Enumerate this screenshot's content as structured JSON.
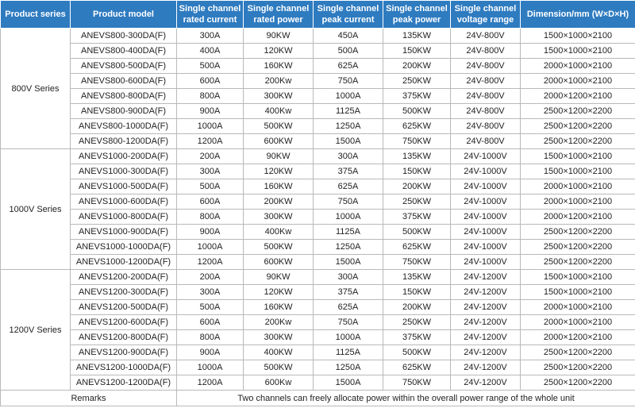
{
  "header": {
    "columns": [
      "Product series",
      "Product model",
      "Single channel\nrated current",
      "Single channel\nrated power",
      "Single channel\npeak current",
      "Single channel\npeak power",
      "Single channel\nvoltage range",
      "Dimension/mm (W×D×H)"
    ]
  },
  "colors": {
    "header_background": "#2e7bc0",
    "header_text": "#ffffff",
    "grid": "#b9b9b9"
  },
  "groups": [
    {
      "series": "800V  Series",
      "rows": [
        [
          "ANEVS800-300DA(F)",
          "300A",
          "90KW",
          "450A",
          "135KW",
          "24V-800V",
          "1500×1000×2100"
        ],
        [
          "ANEVS800-400DA(F)",
          "400A",
          "120KW",
          "500A",
          "150KW",
          "24V-800V",
          "1500×1000×2100"
        ],
        [
          "ANEVS800-500DA(F)",
          "500A",
          "160KW",
          "625A",
          "200KW",
          "24V-800V",
          "2000×1000×2100"
        ],
        [
          "ANEVS800-600DA(F)",
          "600A",
          "200Kw",
          "750A",
          "250KW",
          "24V-800V",
          "2000×1000×2100"
        ],
        [
          "ANEVS800-800DA(F)",
          "800A",
          "300KW",
          "1000A",
          "375KW",
          "24V-800V",
          "2000×1200×2100"
        ],
        [
          "ANEVS800-900DA(F)",
          "900A",
          "400Kw",
          "1125A",
          "500KW",
          "24V-800V",
          "2500×1200×2200"
        ],
        [
          "ANEVS800-1000DA(F)",
          "1000A",
          "500KW",
          "1250A",
          "625KW",
          "24V-800V",
          "2500×1200×2200"
        ],
        [
          "ANEVS800-1200DA(F)",
          "1200A",
          "600KW",
          "1500A",
          "750KW",
          "24V-800V",
          "2500×1200×2200"
        ]
      ]
    },
    {
      "series": "1000V Series",
      "rows": [
        [
          "ANEVS1000-200DA(F)",
          "200A",
          "90KW",
          "300A",
          "135KW",
          "24V-1000V",
          "1500×1000×2100"
        ],
        [
          "ANEVS1000-300DA(F)",
          "300A",
          "120KW",
          "375A",
          "150KW",
          "24V-1000V",
          "1500×1000×2100"
        ],
        [
          "ANEVS1000-500DA(F)",
          "500A",
          "160KW",
          "625A",
          "200KW",
          "24V-1000V",
          "2000×1000×2100"
        ],
        [
          "ANEVS1000-600DA(F)",
          "600A",
          "200KW",
          "750A",
          "250KW",
          "24V-1000V",
          "2000×1000×2100"
        ],
        [
          "ANEVS1000-800DA(F)",
          "800A",
          "300KW",
          "1000A",
          "375KW",
          "24V-1000V",
          "2000×1200×2100"
        ],
        [
          "ANEVS1000-900DA(F)",
          "900A",
          "400Kw",
          "1125A",
          "500KW",
          "24V-1000V",
          "2500×1200×2200"
        ],
        [
          "ANEVS1000-1000DA(F)",
          "1000A",
          "500KW",
          "1250A",
          "625KW",
          "24V-1000V",
          "2500×1200×2200"
        ],
        [
          "ANEVS1000-1200DA(F)",
          "1200A",
          "600KW",
          "1500A",
          "750KW",
          "24V-1000V",
          "2500×1200×2200"
        ]
      ]
    },
    {
      "series": "1200V Series",
      "rows": [
        [
          "ANEVS1200-200DA(F)",
          "200A",
          "90KW",
          "300A",
          "135KW",
          "24V-1200V",
          "1500×1000×2100"
        ],
        [
          "ANEVS1200-300DA(F)",
          "300A",
          "120KW",
          "375A",
          "150KW",
          "24V-1200V",
          "1500×1000×2100"
        ],
        [
          "ANEVS1200-500DA(F)",
          "500A",
          "160KW",
          "625A",
          "200KW",
          "24V-1200V",
          "2000×1000×2100"
        ],
        [
          "ANEVS1200-600DA(F)",
          "600A",
          "200Kw",
          "750A",
          "250KW",
          "24V-1200V",
          "2000×1000×2100"
        ],
        [
          "ANEVS1200-800DA(F)",
          "800A",
          "300KW",
          "1000A",
          "375KW",
          "24V-1200V",
          "2000×1200×2100"
        ],
        [
          "ANEVS1200-900DA(F)",
          "900A",
          "400KW",
          "1125A",
          "500KW",
          "24V-1200V",
          "2500×1200×2200"
        ],
        [
          "ANEVS1200-1000DA(F)",
          "1000A",
          "500KW",
          "1250A",
          "625KW",
          "24V-1200V",
          "2500×1200×2200"
        ],
        [
          "ANEVS1200-1200DA(F)",
          "1200A",
          "600Kw",
          "1500A",
          "750KW",
          "24V-1200V",
          "2500×1200×2200"
        ]
      ]
    }
  ],
  "remarks": {
    "label": "Remarks",
    "text": "Two channels can freely allocate power within the overall power range of the whole unit"
  }
}
